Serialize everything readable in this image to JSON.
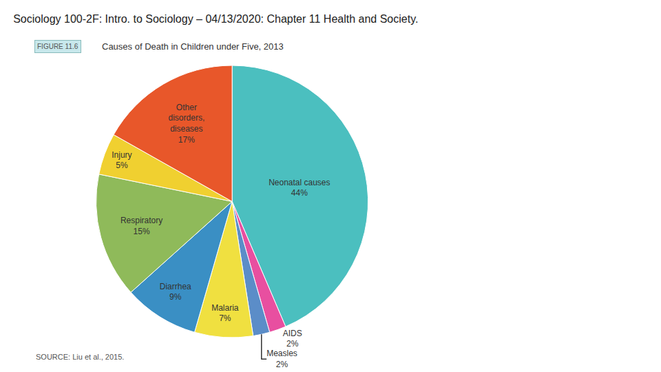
{
  "chart_data": {
    "type": "pie",
    "title": "Sociology 100-2F: Intro. to Sociology – 04/13/2020: Chapter 11 Health and Society.",
    "subtitle": "Causes of Death in Children under Five, 2013",
    "annotations": [
      "FIGURE 11.6",
      "SOURCE: Liu et al., 2015."
    ],
    "categories": [
      "Neonatal causes",
      "AIDS",
      "Measles",
      "Malaria",
      "Diarrhea",
      "Respiratory",
      "Injury",
      "Other\ndisorders,\ndiseases"
    ],
    "values": [
      44,
      2,
      2,
      7,
      9,
      15,
      5,
      17
    ],
    "value_labels": [
      "44%",
      "2%",
      "2%",
      "7%",
      "9%",
      "15%",
      "5%",
      "17%"
    ],
    "colors": [
      "#4bbfbf",
      "#e84fa0",
      "#5b8dc8",
      "#f0e040",
      "#3a8fc4",
      "#8fba5a",
      "#f0d030",
      "#e8572a"
    ],
    "data_labels": true,
    "legend": false
  }
}
